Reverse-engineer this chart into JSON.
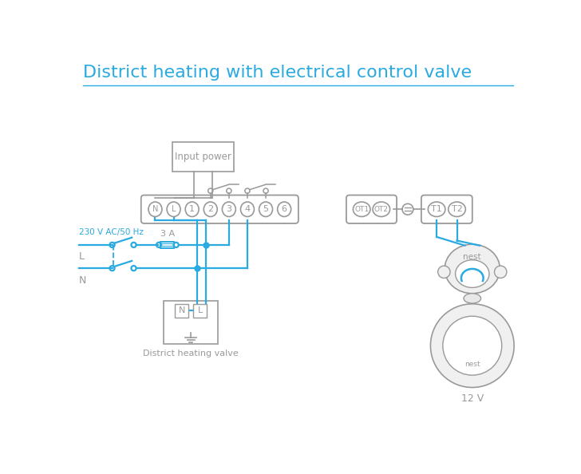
{
  "title": "District heating with electrical control valve",
  "title_color": "#29aae1",
  "title_fontsize": 16,
  "bg_color": "#ffffff",
  "wire_color": "#29aae1",
  "comp_color": "#999999",
  "terminal_labels_main": [
    "N",
    "L",
    "1",
    "2",
    "3",
    "4",
    "5",
    "6"
  ],
  "terminal_labels_ot": [
    "OT1",
    "OT2"
  ],
  "terminal_labels_right": [
    "T1",
    "T2"
  ],
  "label_230v": "230 V AC/50 Hz",
  "label_L": "L",
  "label_N": "N",
  "label_3A": "3 A",
  "label_input_power": "Input power",
  "label_valve": "District heating valve",
  "label_12v": "12 V",
  "label_nest": "nest",
  "label_nest2": "nest"
}
